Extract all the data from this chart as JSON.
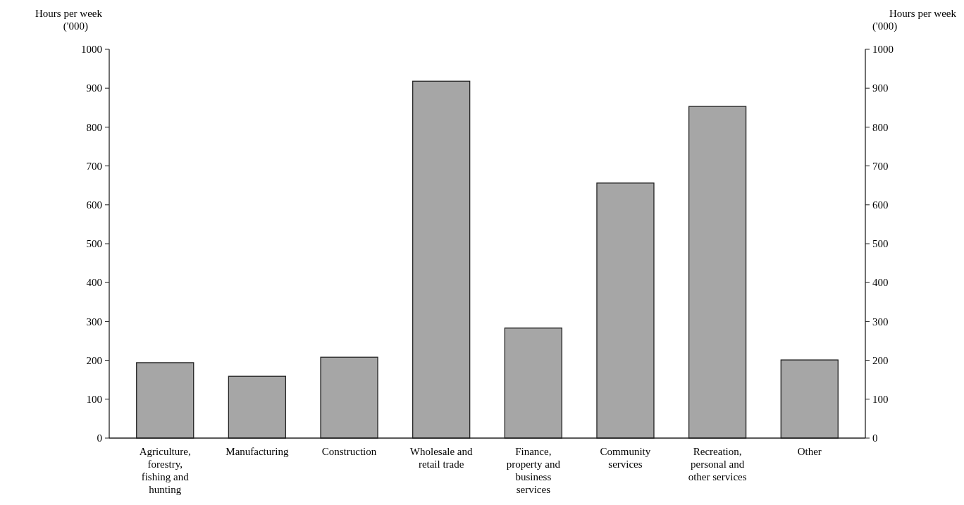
{
  "chart_data": {
    "type": "bar",
    "categories": [
      "Agriculture, forestry, fishing and hunting",
      "Manufacturing",
      "Construction",
      "Wholesale and retail trade",
      "Finance, property and business services",
      "Community services",
      "Recreation, personal and other services",
      "Other"
    ],
    "values": [
      194,
      159,
      208,
      918,
      283,
      656,
      853,
      201
    ],
    "color": "#a6a6a6",
    "ylabel": "Hours per week ('000)",
    "y2label": "Hours per week ('000)",
    "ylim": [
      0,
      1000
    ],
    "yticks": [
      0,
      100,
      200,
      300,
      400,
      500,
      600,
      700,
      800,
      900,
      1000
    ],
    "y2lim": [
      0,
      1000
    ],
    "y2ticks": [
      0,
      100,
      200,
      300,
      400,
      500,
      600,
      700,
      800,
      900,
      1000
    ],
    "grid": false
  }
}
